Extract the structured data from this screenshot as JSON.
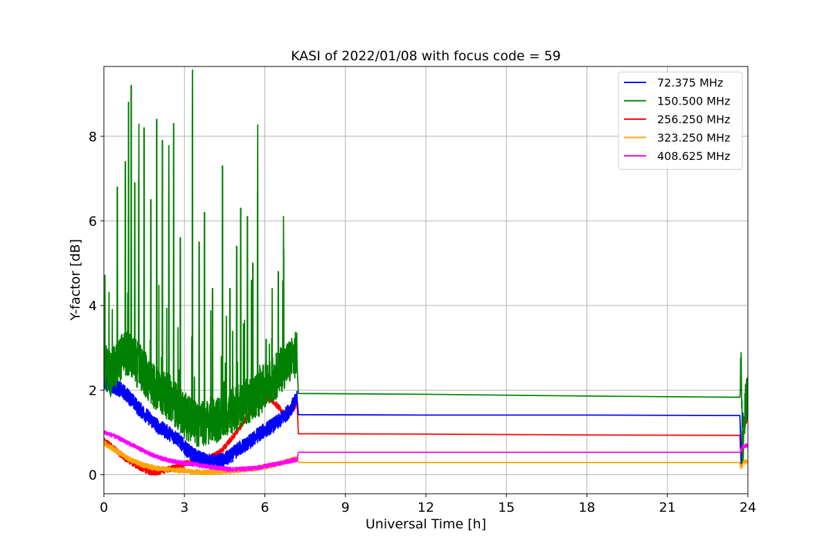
{
  "chart_data": {
    "type": "line",
    "title": "KASI of 2022/01/08 with focus code = 59",
    "xlabel": "Universal Time [h]",
    "ylabel": "Y-factor [dB]",
    "xlim": [
      0,
      24
    ],
    "ylim": [
      -0.45,
      9.65
    ],
    "xticks": [
      0,
      3,
      6,
      9,
      12,
      15,
      18,
      21,
      24
    ],
    "yticks": [
      0,
      2,
      4,
      6,
      8
    ],
    "grid": true,
    "legend_position": "top-right",
    "series": [
      {
        "name": " 72.375 MHz",
        "color": "#0000ff",
        "x": [
          0.0,
          0.25,
          0.5,
          0.75,
          1.0,
          1.25,
          1.5,
          1.75,
          2.0,
          2.25,
          2.5,
          2.75,
          3.0,
          3.25,
          3.5,
          3.75,
          4.0,
          4.25,
          4.5,
          4.75,
          5.0,
          5.25,
          5.5,
          5.75,
          6.0,
          6.25,
          6.5,
          6.75,
          7.0,
          7.2,
          7.25,
          12.0,
          18.0,
          23.7,
          23.75,
          23.8,
          23.85,
          23.9,
          24.0
        ],
        "y": [
          2.2,
          2.1,
          2.05,
          1.95,
          1.8,
          1.6,
          1.45,
          1.3,
          1.15,
          1.05,
          0.95,
          0.85,
          0.65,
          0.5,
          0.4,
          0.35,
          0.3,
          0.3,
          0.35,
          0.45,
          0.6,
          0.7,
          0.8,
          0.95,
          1.05,
          1.15,
          1.25,
          1.4,
          1.6,
          1.8,
          1.42,
          1.41,
          1.41,
          1.4,
          0.3,
          1.4,
          1.2,
          1.5,
          1.6
        ],
        "noise": 0.18
      },
      {
        "name": "150.500 MHz",
        "color": "#008000",
        "x": [
          0.0,
          0.25,
          0.5,
          0.75,
          1.0,
          1.25,
          1.5,
          1.75,
          2.0,
          2.25,
          2.5,
          2.75,
          3.0,
          3.25,
          3.5,
          3.75,
          4.0,
          4.25,
          4.5,
          4.75,
          5.0,
          5.25,
          5.5,
          5.75,
          6.0,
          6.25,
          6.5,
          6.75,
          7.0,
          7.2,
          7.25,
          12.0,
          18.0,
          23.7,
          23.75,
          23.8,
          23.85,
          23.9,
          24.0
        ],
        "y": [
          2.6,
          2.4,
          2.6,
          2.9,
          2.8,
          2.6,
          2.4,
          2.2,
          2.0,
          1.9,
          1.8,
          1.6,
          1.4,
          1.3,
          1.2,
          1.2,
          1.3,
          1.3,
          1.4,
          1.5,
          1.6,
          1.7,
          1.8,
          1.9,
          2.1,
          2.2,
          2.4,
          2.6,
          2.7,
          2.9,
          1.92,
          1.9,
          1.86,
          1.83,
          2.85,
          0.1,
          1.1,
          1.6,
          1.9
        ],
        "noise": 0.55,
        "spikes": [
          [
            0.5,
            6.8
          ],
          [
            0.8,
            7.4
          ],
          [
            0.92,
            8.8
          ],
          [
            1.02,
            9.2
          ],
          [
            1.15,
            6.9
          ],
          [
            1.3,
            7.0
          ],
          [
            1.5,
            8.2
          ],
          [
            1.75,
            6.5
          ],
          [
            1.97,
            8.4
          ],
          [
            2.18,
            7.9
          ],
          [
            2.42,
            6.2
          ],
          [
            2.6,
            8.3
          ],
          [
            2.85,
            5.6
          ],
          [
            3.3,
            8.3
          ],
          [
            3.55,
            5.5
          ],
          [
            3.75,
            6.2
          ],
          [
            4.05,
            4.4
          ],
          [
            4.42,
            7.3
          ],
          [
            4.7,
            4.4
          ],
          [
            4.95,
            5.4
          ],
          [
            5.1,
            6.3
          ],
          [
            5.35,
            6.1
          ],
          [
            5.55,
            5.0
          ],
          [
            5.73,
            6.7
          ],
          [
            6.05,
            3.2
          ],
          [
            6.5,
            4.8
          ],
          [
            6.7,
            5.3
          ]
        ]
      },
      {
        "name": "256.250 MHz",
        "color": "#ff0000",
        "x": [
          0.0,
          0.25,
          0.5,
          0.75,
          1.0,
          1.25,
          1.5,
          1.75,
          2.0,
          2.25,
          2.5,
          2.75,
          3.0,
          3.25,
          3.5,
          3.75,
          4.0,
          4.25,
          4.5,
          4.75,
          5.0,
          5.25,
          5.5,
          5.75,
          6.0,
          6.25,
          6.5,
          6.75,
          7.0,
          7.2,
          7.25,
          12.0,
          18.0,
          23.7,
          23.75,
          23.8,
          23.85,
          23.9,
          24.0
        ],
        "y": [
          0.8,
          0.7,
          0.55,
          0.4,
          0.3,
          0.2,
          0.12,
          0.06,
          0.06,
          0.1,
          0.15,
          0.2,
          0.25,
          0.3,
          0.32,
          0.38,
          0.42,
          0.5,
          0.65,
          0.85,
          1.05,
          1.3,
          1.5,
          1.7,
          1.82,
          1.78,
          1.6,
          1.42,
          1.5,
          1.7,
          0.97,
          0.96,
          0.94,
          0.93,
          0.3,
          0.85,
          1.1,
          1.2,
          1.3
        ],
        "noise": 0.07
      },
      {
        "name": "323.250 MHz",
        "color": "#ffa500",
        "x": [
          0.0,
          0.25,
          0.5,
          0.75,
          1.0,
          1.25,
          1.5,
          1.75,
          2.0,
          2.25,
          2.5,
          2.75,
          3.0,
          3.25,
          3.5,
          3.75,
          4.0,
          4.25,
          4.5,
          4.75,
          5.0,
          5.25,
          5.5,
          5.75,
          6.0,
          6.25,
          6.5,
          6.75,
          7.0,
          7.2,
          7.25,
          12.0,
          18.0,
          23.7,
          23.75,
          23.8,
          23.85,
          23.9,
          24.0
        ],
        "y": [
          0.75,
          0.65,
          0.55,
          0.45,
          0.35,
          0.28,
          0.22,
          0.18,
          0.15,
          0.13,
          0.12,
          0.1,
          0.1,
          0.08,
          0.07,
          0.06,
          0.06,
          0.07,
          0.08,
          0.09,
          0.1,
          0.12,
          0.14,
          0.16,
          0.18,
          0.22,
          0.26,
          0.3,
          0.35,
          0.4,
          0.29,
          0.29,
          0.29,
          0.29,
          0.15,
          0.25,
          0.3,
          0.3,
          0.3
        ],
        "noise": 0.06
      },
      {
        "name": "408.625 MHz",
        "color": "#ff00ff",
        "x": [
          0.0,
          0.25,
          0.5,
          0.75,
          1.0,
          1.25,
          1.5,
          1.75,
          2.0,
          2.25,
          2.5,
          2.75,
          3.0,
          3.25,
          3.5,
          3.75,
          4.0,
          4.25,
          4.5,
          4.75,
          5.0,
          5.25,
          5.5,
          5.75,
          6.0,
          6.25,
          6.5,
          6.75,
          7.0,
          7.2,
          7.25,
          12.0,
          18.0,
          23.7,
          23.75,
          23.8,
          23.85,
          23.9,
          24.0
        ],
        "y": [
          1.0,
          0.95,
          0.88,
          0.8,
          0.72,
          0.64,
          0.56,
          0.48,
          0.42,
          0.37,
          0.33,
          0.3,
          0.27,
          0.25,
          0.23,
          0.2,
          0.18,
          0.16,
          0.14,
          0.13,
          0.13,
          0.14,
          0.15,
          0.17,
          0.2,
          0.23,
          0.26,
          0.3,
          0.33,
          0.36,
          0.53,
          0.53,
          0.53,
          0.53,
          0.6,
          0.65,
          0.65,
          0.68,
          0.7
        ],
        "noise": 0.05
      }
    ]
  }
}
